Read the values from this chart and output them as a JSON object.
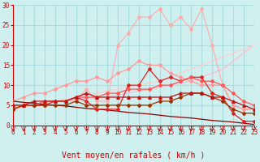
{
  "xlabel": "Vent moyen/en rafales ( km/h )",
  "background_color": "#d0f0f0",
  "grid_color": "#aadddd",
  "xlim": [
    0,
    23
  ],
  "ylim": [
    0,
    30
  ],
  "xticks": [
    0,
    1,
    2,
    3,
    4,
    5,
    6,
    7,
    8,
    9,
    10,
    11,
    12,
    13,
    14,
    15,
    16,
    17,
    18,
    19,
    20,
    21,
    22,
    23
  ],
  "yticks": [
    0,
    5,
    10,
    15,
    20,
    25,
    30
  ],
  "lines": [
    {
      "x": [
        0,
        1,
        2,
        3,
        4,
        5,
        6,
        7,
        8,
        9,
        10,
        11,
        12,
        13,
        14,
        15,
        16,
        17,
        18,
        19,
        20,
        21,
        22,
        23
      ],
      "y": [
        4,
        4.5,
        5,
        5.5,
        6,
        6.2,
        6.5,
        6.8,
        7,
        7.2,
        7.5,
        8,
        8.5,
        9,
        9.5,
        10,
        10.5,
        11,
        12,
        13,
        14,
        16,
        18,
        20
      ],
      "color": "#ffbbcc",
      "linewidth": 0.9,
      "marker": null,
      "zorder": 2
    },
    {
      "x": [
        0,
        1,
        2,
        3,
        4,
        5,
        6,
        7,
        8,
        9,
        10,
        11,
        12,
        13,
        14,
        15,
        16,
        17,
        18,
        19,
        20,
        21,
        22,
        23
      ],
      "y": [
        4,
        4.5,
        5,
        5.5,
        6,
        6.5,
        7,
        7.5,
        8,
        8.5,
        9,
        9.5,
        10,
        10.5,
        11,
        12,
        13,
        14,
        15,
        16,
        17,
        18,
        19,
        20
      ],
      "color": "#ffcccc",
      "linewidth": 0.9,
      "marker": null,
      "zorder": 2
    },
    {
      "x": [
        0,
        1,
        2,
        3,
        4,
        5,
        6,
        7,
        8,
        9,
        10,
        11,
        12,
        13,
        14,
        15,
        16,
        17,
        18,
        19,
        20,
        21,
        22,
        23
      ],
      "y": [
        4,
        5,
        5,
        5,
        6,
        6,
        6,
        9,
        6,
        6,
        20,
        23,
        27,
        27,
        29,
        25,
        27,
        24,
        29,
        20,
        10,
        5,
        4,
        4
      ],
      "color": "#ffaaaa",
      "linewidth": 0.8,
      "marker": "*",
      "markersize": 3,
      "zorder": 3
    },
    {
      "x": [
        0,
        1,
        2,
        3,
        4,
        5,
        6,
        7,
        8,
        9,
        10,
        11,
        12,
        13,
        14,
        15,
        16,
        17,
        18,
        19,
        20,
        21,
        22,
        23
      ],
      "y": [
        6,
        7,
        8,
        8,
        9,
        10,
        11,
        11,
        12,
        11,
        13,
        14,
        16,
        15,
        15,
        13,
        12,
        11,
        10,
        10,
        10,
        5,
        4,
        4
      ],
      "color": "#ff9999",
      "linewidth": 0.9,
      "marker": "*",
      "markersize": 3,
      "zorder": 3
    },
    {
      "x": [
        0,
        1,
        2,
        3,
        4,
        5,
        6,
        7,
        8,
        9,
        10,
        11,
        12,
        13,
        14,
        15,
        16,
        17,
        18,
        19,
        20,
        21,
        22,
        23
      ],
      "y": [
        4,
        5,
        5,
        5,
        6,
        6,
        7,
        6,
        4,
        4,
        4,
        10,
        10,
        14,
        11,
        12,
        11,
        12,
        12,
        8,
        7,
        3,
        1,
        1
      ],
      "color": "#dd2222",
      "linewidth": 0.9,
      "marker": "D",
      "markersize": 2,
      "zorder": 4
    },
    {
      "x": [
        0,
        1,
        2,
        3,
        4,
        5,
        6,
        7,
        8,
        9,
        10,
        11,
        12,
        13,
        14,
        15,
        16,
        17,
        18,
        19,
        20,
        21,
        22,
        23
      ],
      "y": [
        5,
        5,
        5,
        6,
        6,
        6,
        7,
        7,
        7,
        8,
        8,
        9,
        9,
        9,
        10,
        10,
        11,
        12,
        11,
        11,
        10,
        8,
        6,
        5
      ],
      "color": "#ff5555",
      "linewidth": 0.9,
      "marker": "D",
      "markersize": 2,
      "zorder": 4
    },
    {
      "x": [
        0,
        1,
        2,
        3,
        4,
        5,
        6,
        7,
        8,
        9,
        10,
        11,
        12,
        13,
        14,
        15,
        16,
        17,
        18,
        19,
        20,
        21,
        22,
        23
      ],
      "y": [
        5,
        5,
        6,
        6,
        6,
        6,
        7,
        8,
        7,
        7,
        7,
        7,
        7,
        7,
        7,
        7,
        8,
        8,
        8,
        7,
        7,
        6,
        5,
        4
      ],
      "color": "#bb1111",
      "linewidth": 0.9,
      "marker": "^",
      "markersize": 2.5,
      "zorder": 5
    },
    {
      "x": [
        0,
        1,
        2,
        3,
        4,
        5,
        6,
        7,
        8,
        9,
        10,
        11,
        12,
        13,
        14,
        15,
        16,
        17,
        18,
        19,
        20,
        21,
        22,
        23
      ],
      "y": [
        6,
        5.7,
        5.5,
        5.2,
        5,
        4.8,
        4.5,
        4.2,
        4,
        3.8,
        3.5,
        3.2,
        3,
        2.8,
        2.5,
        2.2,
        2,
        1.8,
        1.5,
        1.2,
        1,
        0.8,
        0.5,
        0.2
      ],
      "color": "#880000",
      "linewidth": 0.9,
      "marker": null,
      "zorder": 3
    },
    {
      "x": [
        0,
        1,
        2,
        3,
        4,
        5,
        6,
        7,
        8,
        9,
        10,
        11,
        12,
        13,
        14,
        15,
        16,
        17,
        18,
        19,
        20,
        21,
        22,
        23
      ],
      "y": [
        4,
        5,
        5,
        5,
        5,
        5,
        6,
        5,
        5,
        5,
        5,
        5,
        5,
        5,
        6,
        6,
        7,
        8,
        8,
        7,
        6,
        4,
        3,
        3
      ],
      "color": "#993300",
      "linewidth": 0.9,
      "marker": "D",
      "markersize": 2,
      "zorder": 4
    }
  ],
  "xlabel_fontsize": 7,
  "tick_fontsize": 5.5
}
